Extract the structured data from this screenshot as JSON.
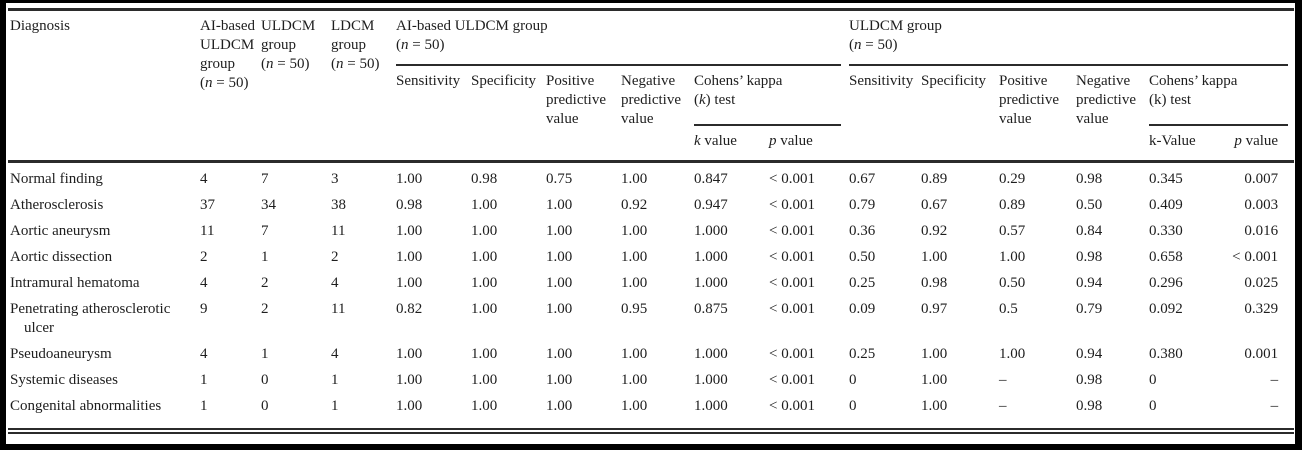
{
  "colors": {
    "frame": "#000000",
    "rule": "#2b2b2b",
    "text": "#1e1e1e",
    "background": "#ffffff"
  },
  "table": {
    "type": "table",
    "header": {
      "diagnosis": "Diagnosis",
      "count_columns": [
        {
          "label": "AI-based[br]ULDCM[br]group[br]([i]n[/i] = 50)"
        },
        {
          "label": "ULDCM[br]group[br]([i]n[/i] = 50)"
        },
        {
          "label": "LDCM[br]group[br]([i]n[/i] = 50)"
        }
      ],
      "groups": [
        {
          "title": "AI-based ULDCM group[br]([i]n[/i] = 50)",
          "metrics": [
            "Sensitivity",
            "Specificity",
            "Positive[br]predictive[br]value",
            "Negative[br]predictive[br]value"
          ],
          "kappa_title": "Cohens’ kappa[br]([i]k[/i]) test",
          "kappa_sub": [
            "[i]k[/i] value",
            "[i]p[/i] value"
          ]
        },
        {
          "title": "ULDCM group[br]([i]n[/i] = 50)",
          "metrics": [
            "Sensitivity",
            "Specificity",
            "Positive[br]predictive[br]value",
            "Negative[br]predictive[br]value"
          ],
          "kappa_title": "Cohens’ kappa[br](k) test",
          "kappa_sub": [
            "k-Value",
            "[i]p[/i] value"
          ]
        }
      ]
    },
    "rows": [
      {
        "diagnosis": "Normal finding",
        "values": [
          "4",
          "7",
          "3",
          "1.00",
          "0.98",
          "0.75",
          "1.00",
          "0.847",
          "< 0.001",
          "0.67",
          "0.89",
          "0.29",
          "0.98",
          "0.345",
          "0.007"
        ]
      },
      {
        "diagnosis": "Atherosclerosis",
        "values": [
          "37",
          "34",
          "38",
          "0.98",
          "1.00",
          "1.00",
          "0.92",
          "0.947",
          "< 0.001",
          "0.79",
          "0.67",
          "0.89",
          "0.50",
          "0.409",
          "0.003"
        ]
      },
      {
        "diagnosis": "Aortic aneurysm",
        "values": [
          "11",
          "7",
          "11",
          "1.00",
          "1.00",
          "1.00",
          "1.00",
          "1.000",
          "< 0.001",
          "0.36",
          "0.92",
          "0.57",
          "0.84",
          "0.330",
          "0.016"
        ]
      },
      {
        "diagnosis": "Aortic dissection",
        "values": [
          "2",
          "1",
          "2",
          "1.00",
          "1.00",
          "1.00",
          "1.00",
          "1.000",
          "< 0.001",
          "0.50",
          "1.00",
          "1.00",
          "0.98",
          "0.658",
          "< 0.001"
        ]
      },
      {
        "diagnosis": "Intramural hematoma",
        "values": [
          "4",
          "2",
          "4",
          "1.00",
          "1.00",
          "1.00",
          "1.00",
          "1.000",
          "< 0.001",
          "0.25",
          "0.98",
          "0.50",
          "0.94",
          "0.296",
          "0.025"
        ]
      },
      {
        "diagnosis": "Penetrating atherosclerotic[br]ulcer",
        "values": [
          "9",
          "2",
          "11",
          "0.82",
          "1.00",
          "1.00",
          "0.95",
          "0.875",
          "< 0.001",
          "0.09",
          "0.97",
          "0.5",
          "0.79",
          "0.092",
          "0.329"
        ]
      },
      {
        "diagnosis": "Pseudoaneurysm",
        "values": [
          "4",
          "1",
          "4",
          "1.00",
          "1.00",
          "1.00",
          "1.00",
          "1.000",
          "< 0.001",
          "0.25",
          "1.00",
          "1.00",
          "0.94",
          "0.380",
          "0.001"
        ]
      },
      {
        "diagnosis": "Systemic diseases",
        "values": [
          "1",
          "0",
          "1",
          "1.00",
          "1.00",
          "1.00",
          "1.00",
          "1.000",
          "< 0.001",
          "0",
          "1.00",
          "–",
          "0.98",
          "0",
          "–"
        ]
      },
      {
        "diagnosis": "Congenital abnormalities",
        "values": [
          "1",
          "0",
          "1",
          "1.00",
          "1.00",
          "1.00",
          "1.00",
          "1.000",
          "< 0.001",
          "0",
          "1.00",
          "–",
          "0.98",
          "0",
          "–"
        ]
      }
    ]
  }
}
